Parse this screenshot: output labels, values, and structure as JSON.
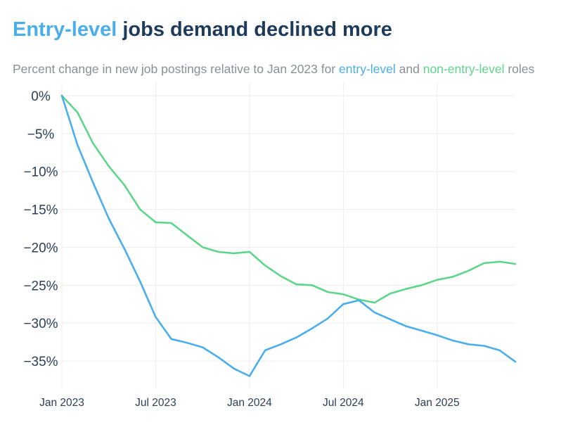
{
  "header": {
    "title_highlight": "Entry-level",
    "title_rest": " jobs demand declined more",
    "subtitle_prefix": "Percent change in new job postings relative to Jan 2023 for ",
    "subtitle_entry": "entry-level",
    "subtitle_and": " and ",
    "subtitle_nonentry": "non-entry-level",
    "subtitle_suffix": " roles"
  },
  "colors": {
    "entry": "#4aaeeb",
    "nonentry": "#5dd58a",
    "title": "#1f3b5c",
    "grid": "#ececec",
    "axis_text": "#2a3f57"
  },
  "chart_data": {
    "type": "line",
    "title": "Entry-level jobs demand declined more",
    "xlabel": "",
    "ylabel": "",
    "x": [
      "2023-01",
      "2023-02",
      "2023-03",
      "2023-04",
      "2023-05",
      "2023-06",
      "2023-07",
      "2023-08",
      "2023-09",
      "2023-10",
      "2023-11",
      "2023-12",
      "2024-01",
      "2024-02",
      "2024-03",
      "2024-04",
      "2024-05",
      "2024-06",
      "2024-07",
      "2024-08",
      "2024-09",
      "2024-10",
      "2024-11",
      "2024-12",
      "2025-01",
      "2025-02",
      "2025-03",
      "2025-04",
      "2025-05",
      "2025-06"
    ],
    "x_tick_labels": [
      "Jan 2023",
      "Jul 2023",
      "Jan 2024",
      "Jul 2024",
      "Jan 2025"
    ],
    "x_tick_positions": [
      "2023-01",
      "2023-07",
      "2024-01",
      "2024-07",
      "2025-01"
    ],
    "y_ticks": [
      0,
      -5,
      -10,
      -15,
      -20,
      -25,
      -30,
      -35
    ],
    "y_tick_labels": [
      "0%",
      "−5%",
      "−10%",
      "−15%",
      "−20%",
      "−25%",
      "−30%",
      "−35%"
    ],
    "ylim": [
      -37.5,
      0
    ],
    "grid": true,
    "legend": "none",
    "series": [
      {
        "name": "entry-level",
        "color": "#4aaeeb",
        "values": [
          0,
          -6.5,
          -11.5,
          -16.2,
          -20.2,
          -24.5,
          -29.2,
          -32.1,
          -32.6,
          -33.2,
          -34.5,
          -36.0,
          -37.0,
          -33.6,
          -32.8,
          -31.9,
          -30.7,
          -29.4,
          -27.5,
          -27.0,
          -28.6,
          -29.5,
          -30.4,
          -31.0,
          -31.6,
          -32.3,
          -32.8,
          -33.0,
          -33.6,
          -35.1
        ]
      },
      {
        "name": "non-entry-level",
        "color": "#5dd58a",
        "values": [
          0,
          -2.2,
          -6.3,
          -9.3,
          -11.8,
          -15.0,
          -16.7,
          -16.8,
          -18.4,
          -20.0,
          -20.6,
          -20.8,
          -20.6,
          -22.4,
          -23.8,
          -24.9,
          -25.0,
          -25.9,
          -26.2,
          -26.9,
          -27.3,
          -26.1,
          -25.5,
          -25.0,
          -24.3,
          -23.9,
          -23.1,
          -22.1,
          -21.9,
          -22.2
        ]
      }
    ]
  }
}
